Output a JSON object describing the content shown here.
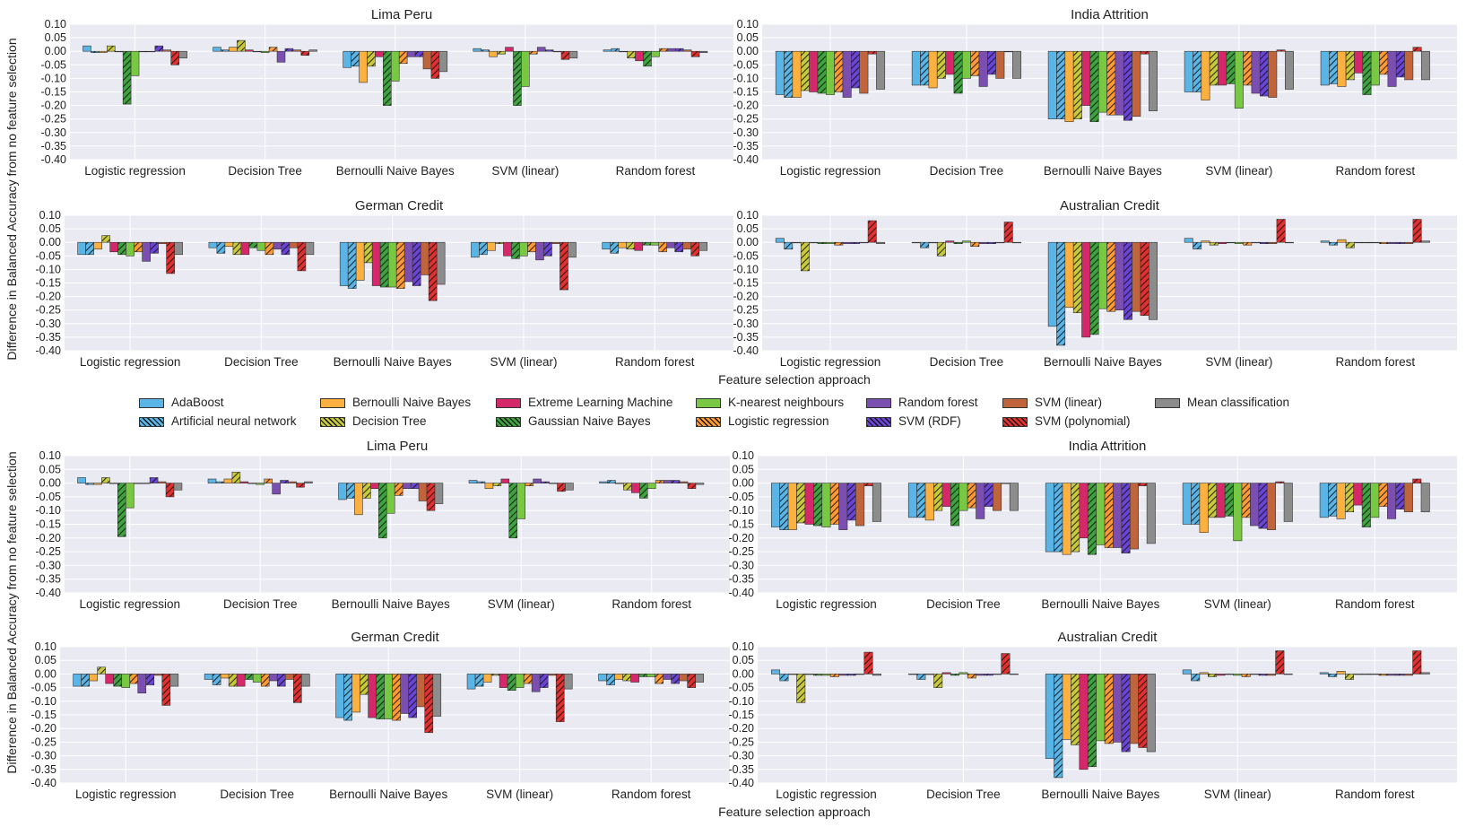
{
  "figure": {
    "ylabel": "Difference in Balanced Accuracy from no feature selection",
    "xlabel": "Feature selection approach"
  },
  "legend": [
    {
      "name": "AdaBoost",
      "color": "#5ab4e5",
      "hatch": false
    },
    {
      "name": "Artificial neural network",
      "color": "#5ab4e5",
      "hatch": true
    },
    {
      "name": "Bernoulli Naive Bayes",
      "color": "#fbb040",
      "hatch": false
    },
    {
      "name": "Decision Tree",
      "color": "#c8c83c",
      "hatch": true
    },
    {
      "name": "Extreme Learning Machine",
      "color": "#d4286a",
      "hatch": false
    },
    {
      "name": "Gaussian Naive Bayes",
      "color": "#3ea33e",
      "hatch": true
    },
    {
      "name": "K-nearest neighbours",
      "color": "#79c843",
      "hatch": false
    },
    {
      "name": "Logistic regression",
      "color": "#ff9933",
      "hatch": true
    },
    {
      "name": "Random forest",
      "color": "#7a4fb0",
      "hatch": false
    },
    {
      "name": "SVM (RDF)",
      "color": "#6a44d4",
      "hatch": true
    },
    {
      "name": "SVM (linear)",
      "color": "#c0643c",
      "hatch": false
    },
    {
      "name": "SVM (polynomial)",
      "color": "#e03030",
      "hatch": true
    },
    {
      "name": "Mean classification",
      "color": "#8c8c8c",
      "hatch": false
    }
  ],
  "chart_data": [
    {
      "type": "bar",
      "title": "Lima Peru",
      "categories": [
        "Logistic regression",
        "Decision Tree",
        "Bernoulli Naive Bayes",
        "SVM (linear)",
        "Random forest"
      ],
      "ylim": [
        -0.4,
        0.1
      ],
      "yticks": [
        "0.10",
        "0.05",
        "0.00",
        "-0.05",
        "-0.10",
        "-0.15",
        "-0.20",
        "-0.25",
        "-0.30",
        "-0.35",
        "-0.40"
      ],
      "values": [
        [
          0.02,
          0.015,
          -0.06,
          0.01,
          0.005
        ],
        [
          -0.005,
          0.005,
          -0.055,
          0.005,
          0.01
        ],
        [
          -0.005,
          0.015,
          -0.115,
          -0.02,
          0.0
        ],
        [
          0.02,
          0.04,
          -0.055,
          -0.01,
          -0.025
        ],
        [
          0.0,
          0.005,
          -0.02,
          0.015,
          -0.035
        ],
        [
          -0.195,
          0.0,
          -0.2,
          -0.2,
          -0.055
        ],
        [
          -0.09,
          -0.005,
          -0.11,
          -0.13,
          -0.02
        ],
        [
          0.0,
          0.015,
          -0.045,
          -0.01,
          0.01
        ],
        [
          0.0,
          -0.04,
          -0.02,
          0.015,
          0.01
        ],
        [
          0.02,
          0.01,
          -0.02,
          0.005,
          0.01
        ],
        [
          0.005,
          0.005,
          -0.065,
          0.0,
          0.005
        ],
        [
          -0.05,
          -0.015,
          -0.1,
          -0.03,
          -0.02
        ],
        [
          -0.025,
          0.005,
          -0.075,
          -0.025,
          -0.005
        ]
      ]
    },
    {
      "type": "bar",
      "title": "India Attrition",
      "categories": [
        "Logistic regression",
        "Decision Tree",
        "Bernoulli Naive Bayes",
        "SVM (linear)",
        "Random forest"
      ],
      "ylim": [
        -0.4,
        0.1
      ],
      "yticks": [
        "0.10",
        "0.05",
        "0.00",
        "-0.05",
        "-0.10",
        "-0.15",
        "-0.20",
        "-0.25",
        "-0.30",
        "-0.35",
        "-0.40"
      ],
      "values": [
        [
          -0.16,
          -0.125,
          -0.25,
          -0.15,
          -0.125
        ],
        [
          -0.17,
          -0.125,
          -0.25,
          -0.15,
          -0.12
        ],
        [
          -0.17,
          -0.135,
          -0.26,
          -0.18,
          -0.13
        ],
        [
          -0.145,
          -0.1,
          -0.25,
          -0.125,
          -0.105
        ],
        [
          -0.15,
          -0.085,
          -0.2,
          -0.125,
          -0.08
        ],
        [
          -0.155,
          -0.155,
          -0.26,
          -0.12,
          -0.16
        ],
        [
          -0.16,
          -0.1,
          -0.225,
          -0.21,
          -0.125
        ],
        [
          -0.15,
          -0.09,
          -0.235,
          -0.125,
          -0.085
        ],
        [
          -0.17,
          -0.13,
          -0.235,
          -0.155,
          -0.13
        ],
        [
          -0.135,
          -0.085,
          -0.255,
          -0.165,
          -0.095
        ],
        [
          -0.155,
          -0.1,
          -0.24,
          -0.17,
          -0.105
        ],
        [
          -0.01,
          0.0,
          -0.01,
          0.005,
          0.015
        ],
        [
          -0.14,
          -0.1,
          -0.22,
          -0.14,
          -0.105
        ]
      ]
    },
    {
      "type": "bar",
      "title": "German Credit",
      "categories": [
        "Logistic regression",
        "Decision Tree",
        "Bernoulli Naive Bayes",
        "SVM (linear)",
        "Random forest"
      ],
      "ylim": [
        -0.4,
        0.1
      ],
      "yticks": [
        "0.10",
        "0.05",
        "0.00",
        "-0.05",
        "-0.10",
        "-0.15",
        "-0.20",
        "-0.25",
        "-0.30",
        "-0.35",
        "-0.40"
      ],
      "values": [
        [
          -0.045,
          -0.02,
          -0.16,
          -0.055,
          -0.025
        ],
        [
          -0.045,
          -0.04,
          -0.17,
          -0.045,
          -0.04
        ],
        [
          -0.025,
          -0.015,
          -0.14,
          -0.03,
          -0.02
        ],
        [
          0.025,
          -0.045,
          -0.075,
          -0.005,
          -0.025
        ],
        [
          -0.035,
          -0.045,
          -0.16,
          -0.05,
          -0.03
        ],
        [
          -0.045,
          -0.02,
          -0.165,
          -0.06,
          -0.01
        ],
        [
          -0.05,
          -0.03,
          -0.165,
          -0.05,
          -0.01
        ],
        [
          -0.035,
          -0.045,
          -0.17,
          -0.035,
          -0.035
        ],
        [
          -0.07,
          -0.025,
          -0.145,
          -0.065,
          -0.02
        ],
        [
          -0.04,
          -0.045,
          -0.16,
          -0.05,
          -0.035
        ],
        [
          -0.005,
          -0.02,
          -0.12,
          -0.005,
          -0.025
        ],
        [
          -0.115,
          -0.105,
          -0.215,
          -0.175,
          -0.05
        ],
        [
          -0.045,
          -0.045,
          -0.155,
          -0.055,
          -0.03
        ]
      ]
    },
    {
      "type": "bar",
      "title": "Australian Credit",
      "categories": [
        "Logistic regression",
        "Decision Tree",
        "Bernoulli Naive Bayes",
        "SVM (linear)",
        "Random forest"
      ],
      "ylim": [
        -0.4,
        0.1
      ],
      "yticks": [
        "0.10",
        "0.05",
        "0.00",
        "-0.05",
        "-0.10",
        "-0.15",
        "-0.20",
        "-0.25",
        "-0.30",
        "-0.35",
        "-0.40"
      ],
      "values": [
        [
          0.015,
          0.0,
          -0.31,
          0.015,
          0.005
        ],
        [
          -0.025,
          -0.02,
          -0.38,
          -0.025,
          -0.01
        ],
        [
          0.0,
          0.0,
          -0.24,
          0.005,
          0.01
        ],
        [
          -0.105,
          -0.05,
          -0.26,
          -0.01,
          -0.02
        ],
        [
          0.0,
          0.005,
          -0.35,
          -0.005,
          0.0
        ],
        [
          -0.005,
          -0.005,
          -0.34,
          0.0,
          0.0
        ],
        [
          -0.005,
          0.005,
          -0.245,
          -0.005,
          0.0
        ],
        [
          -0.01,
          -0.015,
          -0.255,
          -0.01,
          -0.005
        ],
        [
          -0.005,
          -0.005,
          -0.25,
          0.0,
          -0.005
        ],
        [
          -0.005,
          -0.005,
          -0.285,
          -0.005,
          -0.005
        ],
        [
          0.0,
          0.0,
          -0.255,
          -0.005,
          -0.005
        ],
        [
          0.08,
          0.075,
          -0.27,
          0.085,
          0.085
        ],
        [
          -0.005,
          0.0,
          -0.285,
          0.0,
          0.005
        ]
      ]
    }
  ]
}
